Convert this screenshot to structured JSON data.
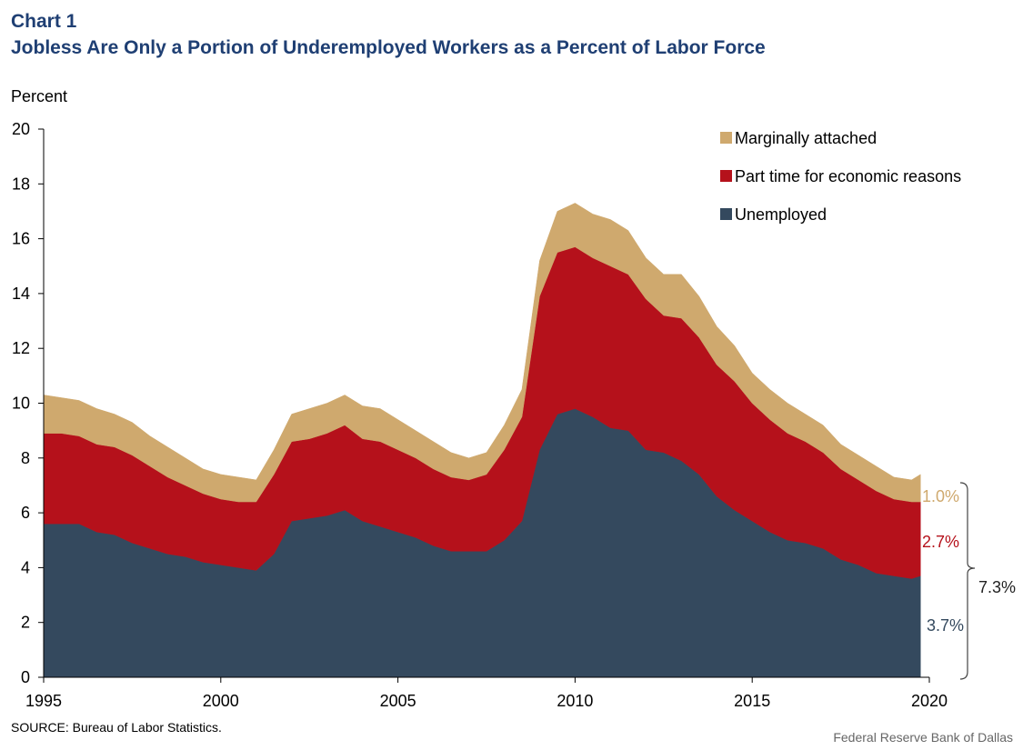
{
  "header": {
    "title": "Chart 1",
    "subtitle": "Jobless Are Only a Portion of Underemployed Workers as a Percent of Labor Force"
  },
  "footer": {
    "source": "SOURCE:  Bureau of Labor Statistics.",
    "credit": "Federal Reserve  Bank of Dallas"
  },
  "chart_data": {
    "type": "area",
    "stacked": true,
    "title": "Jobless Are Only a Portion of Underemployed Workers as a Percent of Labor Force",
    "ylabel": "Percent",
    "xlabel": "",
    "xlim": [
      1995,
      2020
    ],
    "ylim": [
      0,
      20
    ],
    "x_ticks": [
      "1995",
      "2000",
      "2005",
      "2010",
      "2015",
      "2020"
    ],
    "y_ticks": [
      "0",
      "2",
      "4",
      "6",
      "8",
      "10",
      "12",
      "14",
      "16",
      "18",
      "20"
    ],
    "grid": false,
    "legend_position": "top-right",
    "x": [
      1995.0,
      1995.5,
      1996.0,
      1996.5,
      1997.0,
      1997.5,
      1998.0,
      1998.5,
      1999.0,
      1999.5,
      2000.0,
      2000.5,
      2001.0,
      2001.5,
      2002.0,
      2002.5,
      2003.0,
      2003.5,
      2004.0,
      2004.5,
      2005.0,
      2005.5,
      2006.0,
      2006.5,
      2007.0,
      2007.5,
      2008.0,
      2008.5,
      2009.0,
      2009.5,
      2010.0,
      2010.5,
      2011.0,
      2011.5,
      2012.0,
      2012.5,
      2013.0,
      2013.5,
      2014.0,
      2014.5,
      2015.0,
      2015.5,
      2016.0,
      2016.5,
      2017.0,
      2017.5,
      2018.0,
      2018.5,
      2019.0,
      2019.5,
      2019.75
    ],
    "series": [
      {
        "name": "Unemployed",
        "color": "#34495e",
        "values": [
          5.6,
          5.6,
          5.6,
          5.3,
          5.2,
          4.9,
          4.7,
          4.5,
          4.4,
          4.2,
          4.1,
          4.0,
          3.9,
          4.5,
          5.7,
          5.8,
          5.9,
          6.1,
          5.7,
          5.5,
          5.3,
          5.1,
          4.8,
          4.6,
          4.6,
          4.6,
          5.0,
          5.7,
          8.3,
          9.6,
          9.8,
          9.5,
          9.1,
          9.0,
          8.3,
          8.2,
          7.9,
          7.4,
          6.6,
          6.1,
          5.7,
          5.3,
          5.0,
          4.9,
          4.7,
          4.3,
          4.1,
          3.8,
          3.7,
          3.6,
          3.7
        ]
      },
      {
        "name": "Part time for economic reasons",
        "color": "#b5111b",
        "values": [
          3.3,
          3.3,
          3.2,
          3.2,
          3.2,
          3.2,
          3.0,
          2.8,
          2.6,
          2.5,
          2.4,
          2.4,
          2.5,
          2.9,
          2.9,
          2.9,
          3.0,
          3.1,
          3.0,
          3.1,
          3.0,
          2.9,
          2.8,
          2.7,
          2.6,
          2.8,
          3.3,
          3.8,
          5.6,
          5.9,
          5.9,
          5.8,
          5.9,
          5.7,
          5.5,
          5.0,
          5.2,
          5.0,
          4.8,
          4.7,
          4.3,
          4.1,
          3.9,
          3.7,
          3.5,
          3.3,
          3.1,
          3.0,
          2.8,
          2.8,
          2.7
        ]
      },
      {
        "name": "Marginally attached",
        "color": "#cfa96e",
        "values": [
          1.4,
          1.3,
          1.3,
          1.3,
          1.2,
          1.2,
          1.1,
          1.1,
          1.0,
          0.9,
          0.9,
          0.9,
          0.8,
          0.9,
          1.0,
          1.1,
          1.1,
          1.1,
          1.2,
          1.2,
          1.1,
          1.0,
          1.0,
          0.9,
          0.8,
          0.8,
          0.9,
          1.0,
          1.3,
          1.5,
          1.6,
          1.6,
          1.7,
          1.6,
          1.5,
          1.5,
          1.6,
          1.5,
          1.4,
          1.3,
          1.1,
          1.1,
          1.1,
          1.0,
          1.0,
          0.9,
          0.9,
          0.9,
          0.8,
          0.8,
          1.0
        ]
      }
    ],
    "annotations": {
      "marginal_label": "1.0%",
      "parttime_label": "2.7%",
      "unemployed_label": "3.7%",
      "total_label": "7.3%"
    }
  }
}
